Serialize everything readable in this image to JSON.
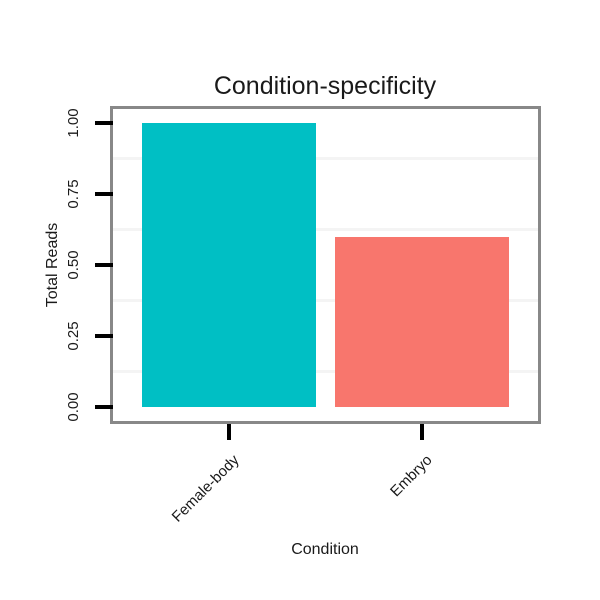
{
  "chart_data": {
    "type": "bar",
    "title": "Condition-specificity",
    "xlabel": "Condition",
    "ylabel": "Total Reads",
    "categories": [
      "Female-body",
      "Embryo"
    ],
    "values": [
      1.0,
      0.6
    ],
    "bar_colors": [
      "#00BFC4",
      "#F8766D"
    ],
    "ylim": [
      0,
      1
    ],
    "y_axis_expansion": 0.05,
    "yticks": [
      {
        "label": "0.00",
        "value": 0.0
      },
      {
        "label": "0.25",
        "value": 0.25
      },
      {
        "label": "0.50",
        "value": 0.5
      },
      {
        "label": "0.75",
        "value": 0.75
      },
      {
        "label": "1.00",
        "value": 1.0
      }
    ],
    "minor_gridlines": [
      0.125,
      0.375,
      0.625,
      0.875
    ],
    "grid": "minor-horizontal-only",
    "legend": "none",
    "x_tick_label_angle": 45,
    "y_tick_label_angle": 90
  },
  "colors": {
    "background": "#FFFFFF",
    "panel_background": "#FFFFFF",
    "panel_border": "#888888",
    "tick": "#000000",
    "text": "#1A1A1A",
    "minor_grid": "#F4F4F4"
  }
}
